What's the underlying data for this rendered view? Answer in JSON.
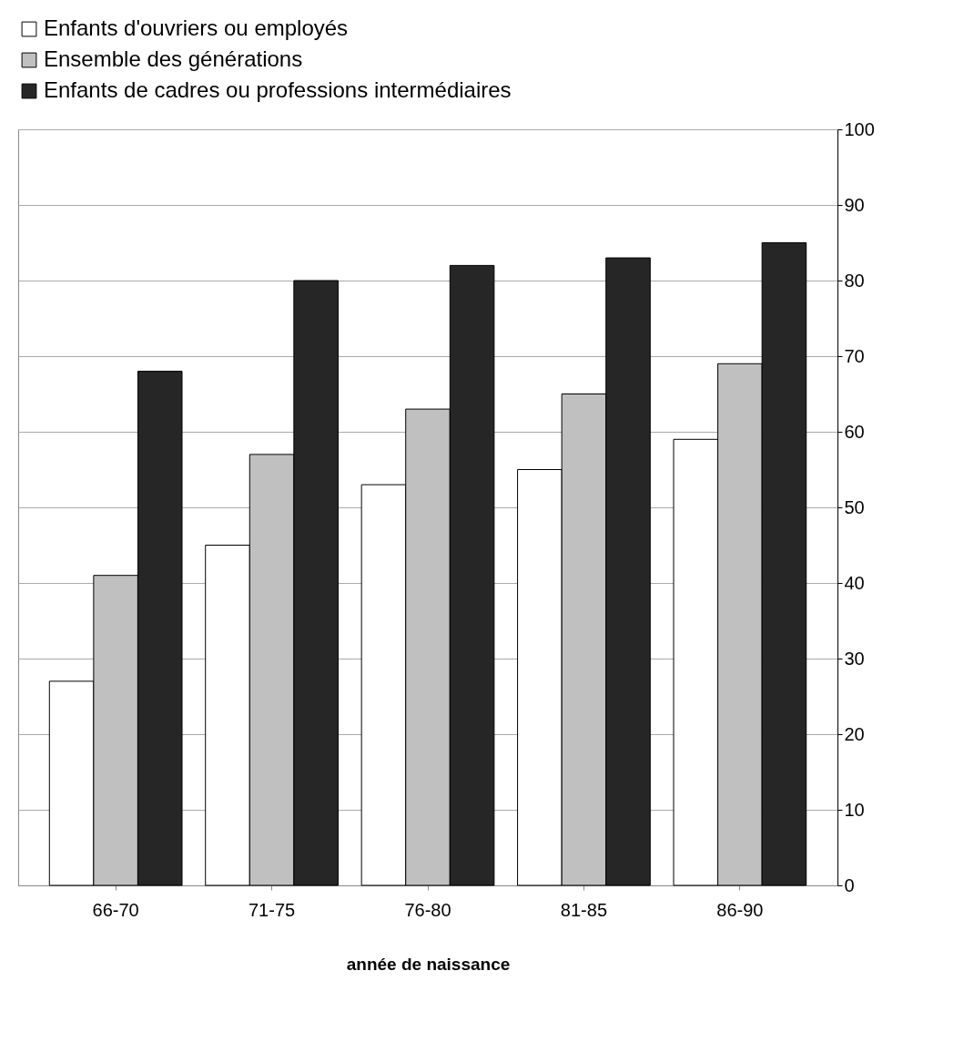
{
  "chart_data": {
    "type": "bar",
    "xlabel": "année de naissance",
    "categories": [
      "66-70",
      "71-75",
      "76-80",
      "81-85",
      "86-90"
    ],
    "series": [
      {
        "name": "Enfants d'ouvriers ou employés",
        "color": "#ffffff",
        "values": [
          27,
          45,
          53,
          55,
          59
        ]
      },
      {
        "name": "Ensemble des générations",
        "color": "#c0c0c0",
        "values": [
          41,
          57,
          63,
          65,
          69
        ]
      },
      {
        "name": "Enfants de cadres ou professions intermédiaires",
        "color": "#262626",
        "values": [
          68,
          80,
          82,
          83,
          85
        ]
      }
    ],
    "ylim": [
      0,
      100
    ],
    "yticks": [
      0,
      10,
      20,
      30,
      40,
      50,
      60,
      70,
      80,
      90,
      100
    ],
    "grid": "y",
    "legend": "top left"
  }
}
